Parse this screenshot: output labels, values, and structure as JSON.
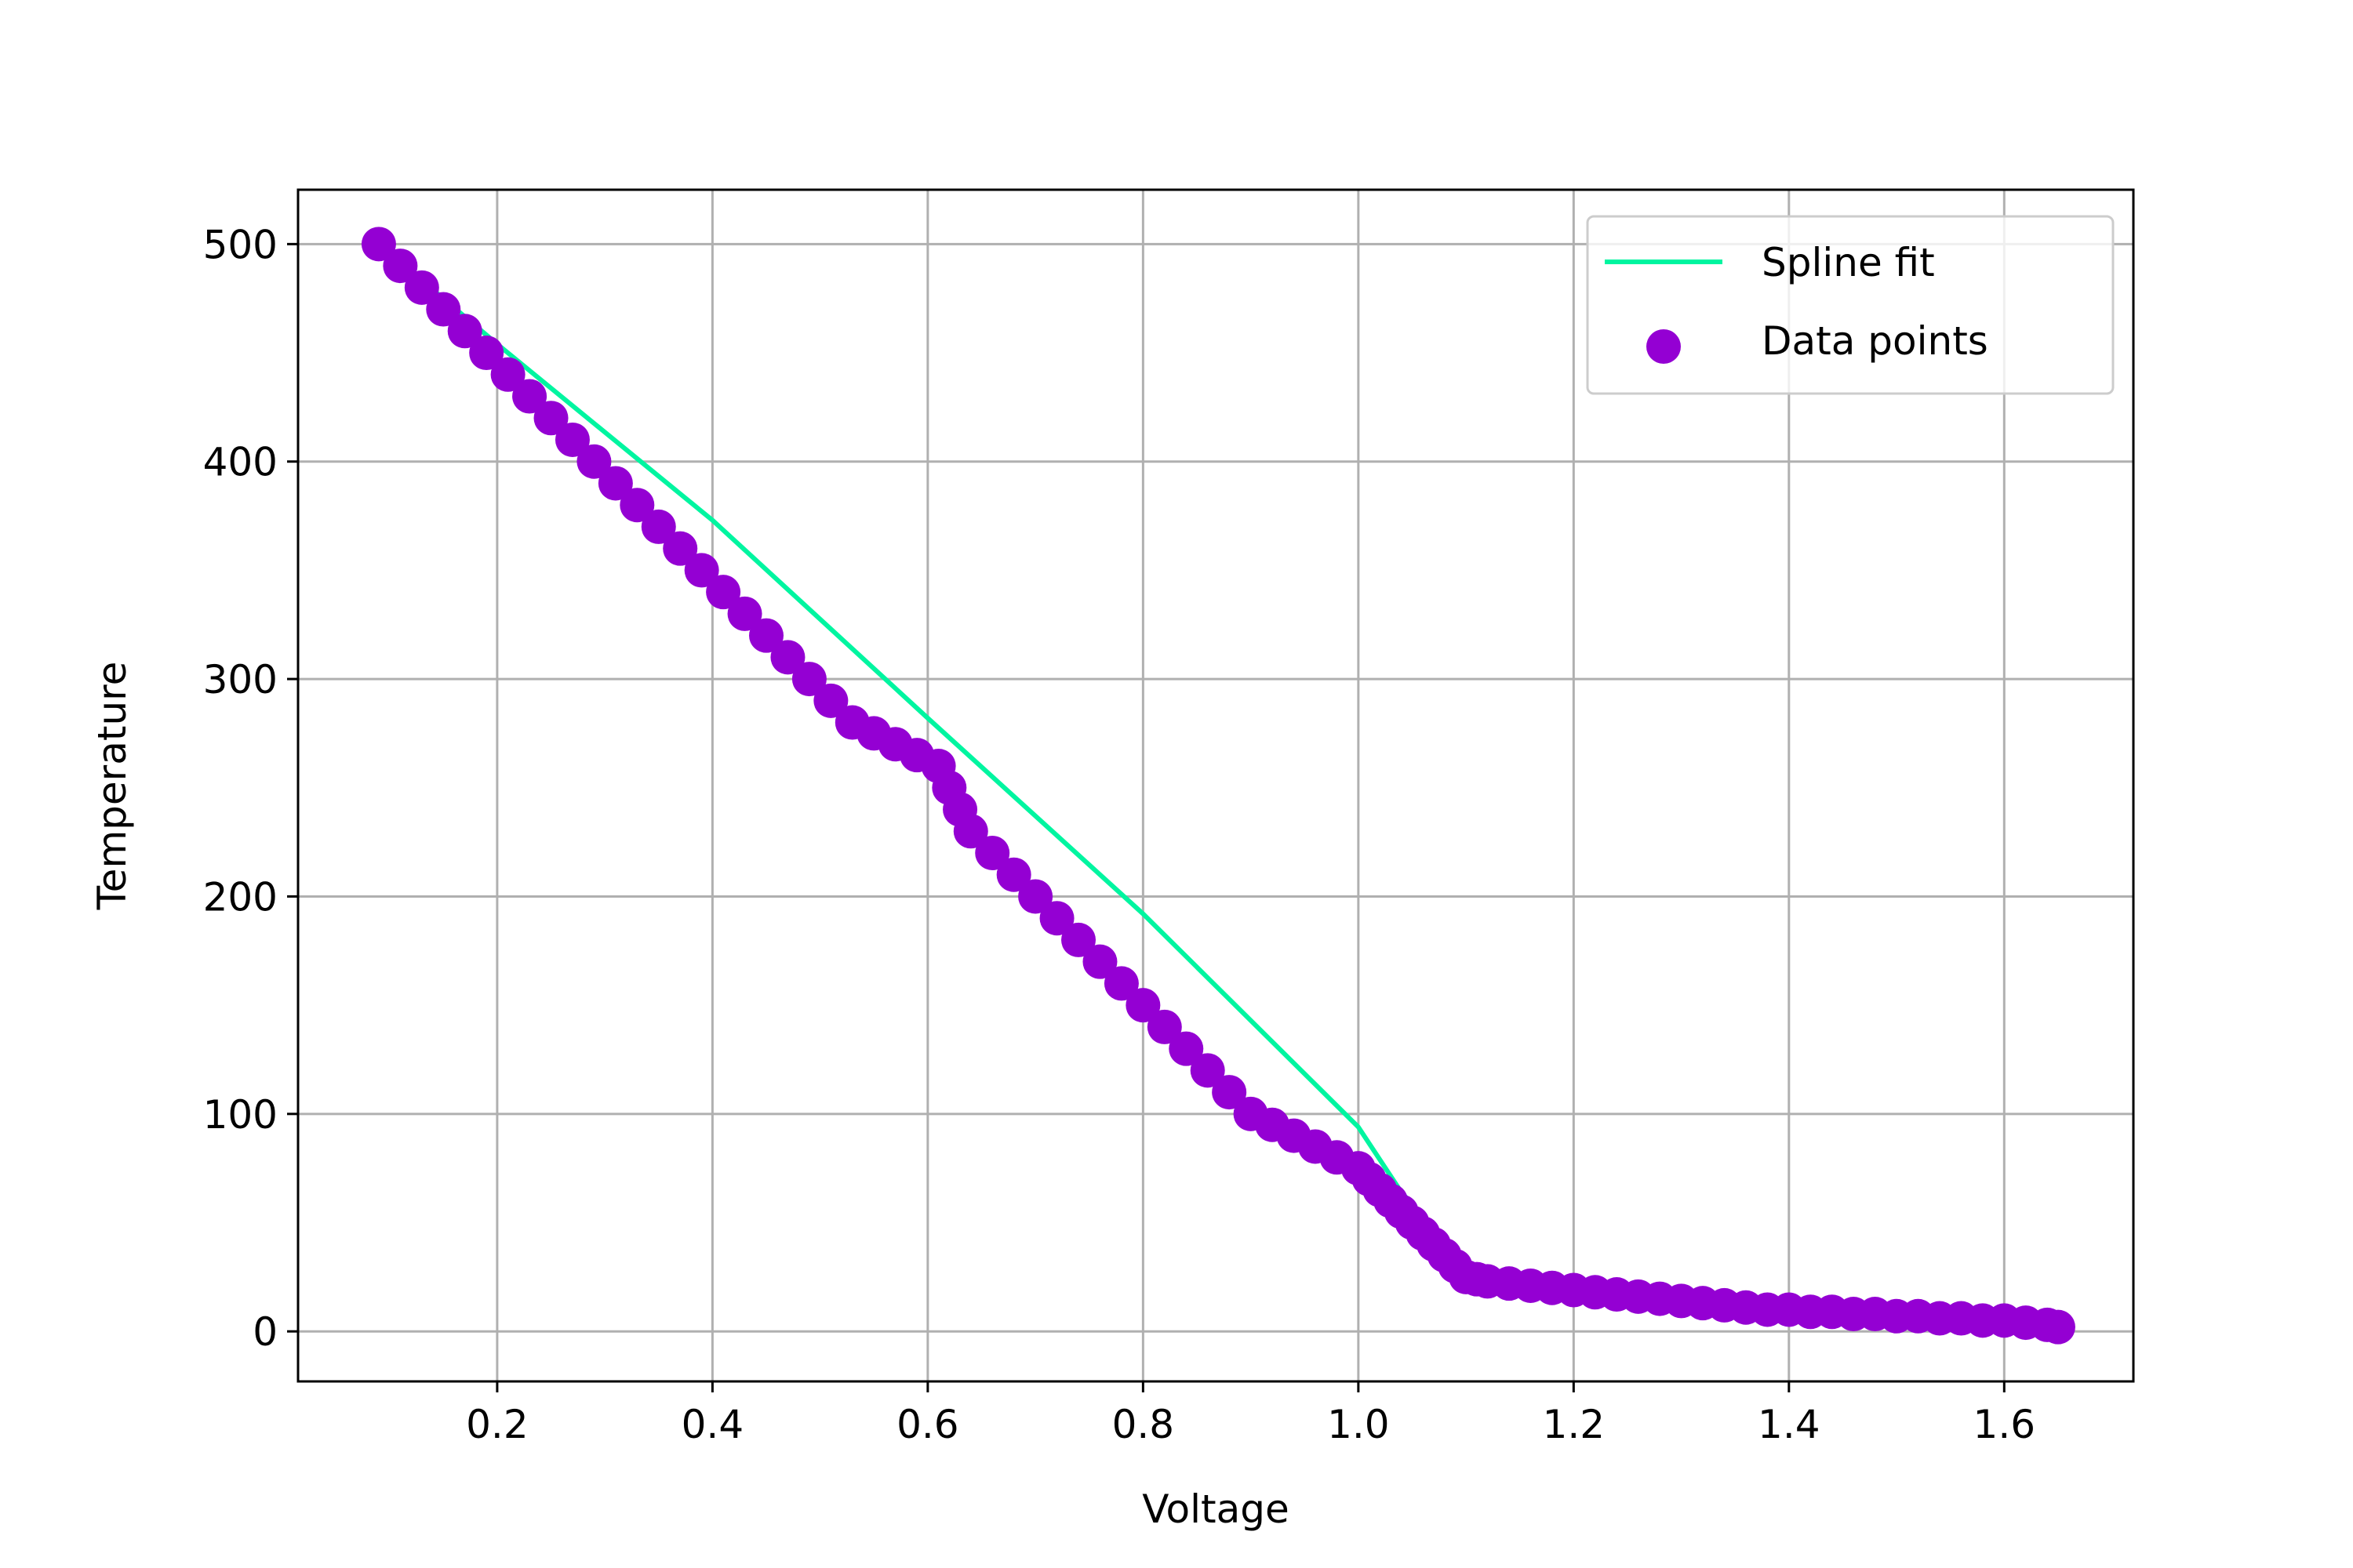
{
  "chart_data": {
    "type": "scatter",
    "title": "",
    "xlabel": "Voltage",
    "ylabel": "Temperature",
    "xlim": [
      0.015,
      1.72
    ],
    "ylim": [
      -23,
      525
    ],
    "xticks": [
      0.2,
      0.4,
      0.6,
      0.8,
      1.0,
      1.2,
      1.4,
      1.6
    ],
    "xtick_labels": [
      "0.2",
      "0.4",
      "0.6",
      "0.8",
      "1.0",
      "1.2",
      "1.4",
      "1.6"
    ],
    "yticks": [
      0,
      100,
      200,
      300,
      400,
      500
    ],
    "ytick_labels": [
      "0",
      "100",
      "200",
      "300",
      "400",
      "500"
    ],
    "grid": true,
    "legend_position": "top-right",
    "colors": {
      "spline": "#00f5a0",
      "points": "#9400d3",
      "grid": "#b0b0b0",
      "axes": "#000000"
    },
    "series": [
      {
        "name": "Spline fit",
        "kind": "line",
        "x": [
          0.09,
          0.2,
          0.4,
          0.6,
          0.8,
          1.0,
          1.04,
          1.08,
          1.12,
          1.2,
          1.3,
          1.4,
          1.5,
          1.6,
          1.65
        ],
        "y": [
          500,
          454,
          373,
          282,
          192,
          94,
          64,
          42,
          24,
          19,
          13,
          9,
          6,
          3,
          2
        ]
      },
      {
        "name": "Data points",
        "kind": "scatter",
        "x": [
          0.09,
          0.11,
          0.13,
          0.15,
          0.17,
          0.19,
          0.21,
          0.23,
          0.25,
          0.27,
          0.29,
          0.31,
          0.33,
          0.35,
          0.37,
          0.39,
          0.41,
          0.43,
          0.45,
          0.47,
          0.49,
          0.51,
          0.53,
          0.55,
          0.57,
          0.59,
          0.61,
          0.62,
          0.63,
          0.64,
          0.66,
          0.68,
          0.7,
          0.72,
          0.74,
          0.76,
          0.78,
          0.8,
          0.82,
          0.84,
          0.86,
          0.88,
          0.9,
          0.92,
          0.94,
          0.96,
          0.98,
          1.0,
          1.01,
          1.02,
          1.03,
          1.04,
          1.05,
          1.06,
          1.07,
          1.08,
          1.09,
          1.1,
          1.11,
          1.12,
          1.14,
          1.16,
          1.18,
          1.2,
          1.22,
          1.24,
          1.26,
          1.28,
          1.3,
          1.32,
          1.34,
          1.36,
          1.38,
          1.4,
          1.42,
          1.44,
          1.46,
          1.48,
          1.5,
          1.52,
          1.54,
          1.56,
          1.58,
          1.6,
          1.62,
          1.64,
          1.65
        ],
        "y": [
          500,
          490,
          480,
          470,
          460,
          450,
          440,
          430,
          420,
          410,
          400,
          390,
          380,
          370,
          360,
          350,
          340,
          330,
          320,
          310,
          300,
          290,
          280,
          275,
          270,
          265,
          260,
          250,
          240,
          230,
          220,
          210,
          200,
          190,
          180,
          170,
          160,
          150,
          140,
          130,
          120,
          110,
          100,
          95,
          90,
          85,
          80,
          75,
          70,
          65,
          60,
          55,
          50,
          45,
          40,
          35,
          30,
          25,
          24,
          23,
          22,
          21,
          20,
          19,
          18,
          17,
          16,
          15,
          14,
          13,
          12,
          11,
          10,
          10,
          9,
          9,
          8,
          8,
          7,
          7,
          6,
          6,
          5,
          5,
          4,
          3,
          2
        ]
      }
    ]
  }
}
